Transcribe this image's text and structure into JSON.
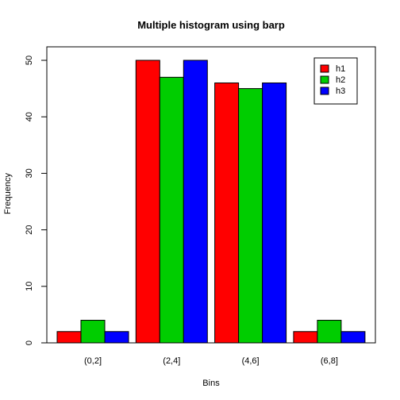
{
  "chart_data": {
    "type": "bar",
    "title": "Multiple histogram using barp",
    "xlabel": "Bins",
    "ylabel": "Frequency",
    "categories": [
      "(0,2]",
      "(2,4]",
      "(4,6]",
      "(6,8]"
    ],
    "series": [
      {
        "name": "h1",
        "color": "#ff0000",
        "values": [
          2,
          50,
          46,
          2
        ]
      },
      {
        "name": "h2",
        "color": "#00cd00",
        "values": [
          4,
          47,
          45,
          4
        ]
      },
      {
        "name": "h3",
        "color": "#0000ff",
        "values": [
          2,
          50,
          46,
          2
        ]
      }
    ],
    "ylim": [
      0,
      50
    ],
    "yticks": [
      0,
      10,
      20,
      30,
      40,
      50
    ],
    "grid": false,
    "legend_position": "top-right"
  }
}
